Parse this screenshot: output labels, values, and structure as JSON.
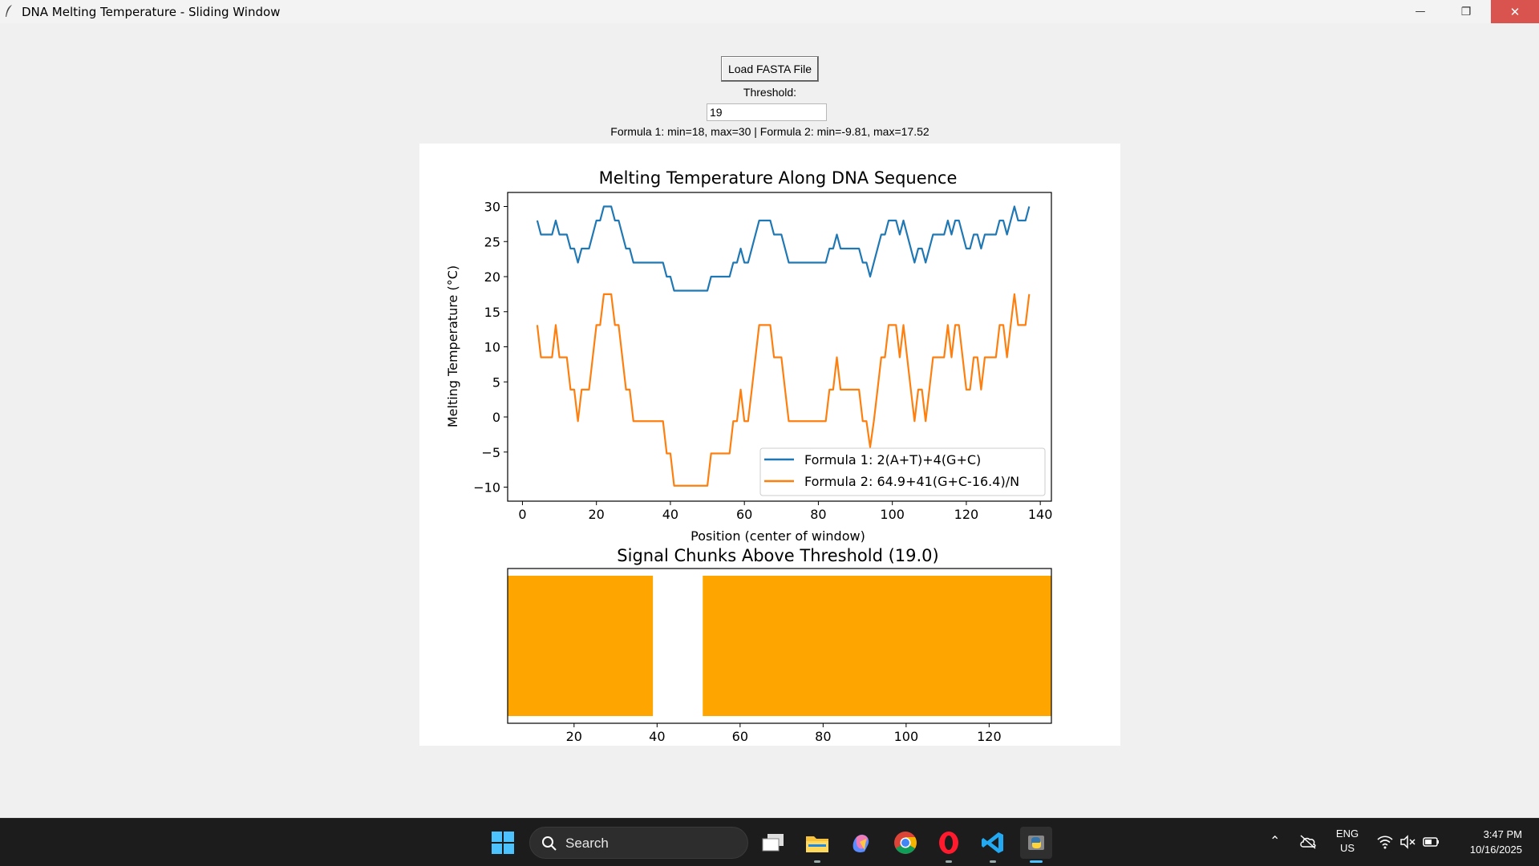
{
  "window": {
    "title": "DNA Melting Temperature - Sliding Window",
    "minimize_glyph": "—",
    "maximize_glyph": "❐",
    "close_glyph": "✕"
  },
  "controls": {
    "load_button": "Load FASTA File",
    "threshold_label": "Threshold:",
    "threshold_value": "19",
    "info_text": "Formula 1: min=18, max=30 | Formula 2: min=-9.81, max=17.52"
  },
  "chart_data": [
    {
      "type": "line",
      "title": "Melting Temperature Along DNA Sequence",
      "xlabel": "Position (center of window)",
      "ylabel": "Melting Temperature (°C)",
      "xlim": [
        -4,
        143
      ],
      "ylim": [
        -12,
        32
      ],
      "xticks": [
        "0",
        "20",
        "40",
        "60",
        "80",
        "100",
        "120",
        "140"
      ],
      "yticks": [
        "30",
        "25",
        "20",
        "15",
        "10",
        "5",
        "0",
        "−5",
        "−10"
      ],
      "legend_position": "lower-right",
      "grid": false,
      "series": [
        {
          "name": "Formula 1: 2(A+T)+4(G+C)",
          "color": "#1f77b4",
          "points": [
            [
              4,
              28
            ],
            [
              5,
              26
            ],
            [
              6,
              26
            ],
            [
              7,
              26
            ],
            [
              8,
              26
            ],
            [
              9,
              28
            ],
            [
              10,
              26
            ],
            [
              11,
              26
            ],
            [
              12,
              26
            ],
            [
              13,
              24
            ],
            [
              14,
              24
            ],
            [
              15,
              22
            ],
            [
              16,
              24
            ],
            [
              17,
              24
            ],
            [
              18,
              24
            ],
            [
              19,
              26
            ],
            [
              20,
              28
            ],
            [
              21,
              28
            ],
            [
              22,
              30
            ],
            [
              23,
              30
            ],
            [
              24,
              30
            ],
            [
              25,
              28
            ],
            [
              26,
              28
            ],
            [
              27,
              26
            ],
            [
              28,
              24
            ],
            [
              29,
              24
            ],
            [
              30,
              22
            ],
            [
              31,
              22
            ],
            [
              32,
              22
            ],
            [
              33,
              22
            ],
            [
              34,
              22
            ],
            [
              35,
              22
            ],
            [
              36,
              22
            ],
            [
              37,
              22
            ],
            [
              38,
              22
            ],
            [
              39,
              20
            ],
            [
              40,
              20
            ],
            [
              41,
              18
            ],
            [
              42,
              18
            ],
            [
              43,
              18
            ],
            [
              44,
              18
            ],
            [
              45,
              18
            ],
            [
              46,
              18
            ],
            [
              47,
              18
            ],
            [
              48,
              18
            ],
            [
              49,
              18
            ],
            [
              50,
              18
            ],
            [
              51,
              20
            ],
            [
              52,
              20
            ],
            [
              53,
              20
            ],
            [
              54,
              20
            ],
            [
              55,
              20
            ],
            [
              56,
              20
            ],
            [
              57,
              22
            ],
            [
              58,
              22
            ],
            [
              59,
              24
            ],
            [
              60,
              22
            ],
            [
              61,
              22
            ],
            [
              62,
              24
            ],
            [
              63,
              26
            ],
            [
              64,
              28
            ],
            [
              65,
              28
            ],
            [
              66,
              28
            ],
            [
              67,
              28
            ],
            [
              68,
              26
            ],
            [
              69,
              26
            ],
            [
              70,
              26
            ],
            [
              71,
              24
            ],
            [
              72,
              22
            ],
            [
              73,
              22
            ],
            [
              74,
              22
            ],
            [
              75,
              22
            ],
            [
              76,
              22
            ],
            [
              77,
              22
            ],
            [
              78,
              22
            ],
            [
              79,
              22
            ],
            [
              80,
              22
            ],
            [
              81,
              22
            ],
            [
              82,
              22
            ],
            [
              83,
              24
            ],
            [
              84,
              24
            ],
            [
              85,
              26
            ],
            [
              86,
              24
            ],
            [
              87,
              24
            ],
            [
              88,
              24
            ],
            [
              89,
              24
            ],
            [
              90,
              24
            ],
            [
              91,
              24
            ],
            [
              92,
              22
            ],
            [
              93,
              22
            ],
            [
              94,
              20
            ],
            [
              95,
              22
            ],
            [
              96,
              24
            ],
            [
              97,
              26
            ],
            [
              98,
              26
            ],
            [
              99,
              28
            ],
            [
              100,
              28
            ],
            [
              101,
              28
            ],
            [
              102,
              26
            ],
            [
              103,
              28
            ],
            [
              104,
              26
            ],
            [
              105,
              24
            ],
            [
              106,
              22
            ],
            [
              107,
              24
            ],
            [
              108,
              24
            ],
            [
              109,
              22
            ],
            [
              110,
              24
            ],
            [
              111,
              26
            ],
            [
              112,
              26
            ],
            [
              113,
              26
            ],
            [
              114,
              26
            ],
            [
              115,
              28
            ],
            [
              116,
              26
            ],
            [
              117,
              28
            ],
            [
              118,
              28
            ],
            [
              119,
              26
            ],
            [
              120,
              24
            ],
            [
              121,
              24
            ],
            [
              122,
              26
            ],
            [
              123,
              26
            ],
            [
              124,
              24
            ],
            [
              125,
              26
            ],
            [
              126,
              26
            ],
            [
              127,
              26
            ],
            [
              128,
              26
            ],
            [
              129,
              28
            ],
            [
              130,
              28
            ],
            [
              131,
              26
            ],
            [
              132,
              28
            ],
            [
              133,
              30
            ],
            [
              134,
              28
            ],
            [
              135,
              28
            ],
            [
              136,
              28
            ],
            [
              137,
              30
            ]
          ]
        },
        {
          "name": "Formula 2: 64.9+41(G+C-16.4)/N",
          "color": "#ff7f0e",
          "points": [
            [
              4,
              13.1
            ],
            [
              5,
              8.5
            ],
            [
              6,
              8.5
            ],
            [
              7,
              8.5
            ],
            [
              8,
              8.5
            ],
            [
              9,
              13.1
            ],
            [
              10,
              8.5
            ],
            [
              11,
              8.5
            ],
            [
              12,
              8.5
            ],
            [
              13,
              3.9
            ],
            [
              14,
              3.9
            ],
            [
              15,
              -0.6
            ],
            [
              16,
              3.9
            ],
            [
              17,
              3.9
            ],
            [
              18,
              3.9
            ],
            [
              19,
              8.5
            ],
            [
              20,
              13.1
            ],
            [
              21,
              13.1
            ],
            [
              22,
              17.5
            ],
            [
              23,
              17.5
            ],
            [
              24,
              17.5
            ],
            [
              25,
              13.1
            ],
            [
              26,
              13.1
            ],
            [
              27,
              8.5
            ],
            [
              28,
              3.9
            ],
            [
              29,
              3.9
            ],
            [
              30,
              -0.6
            ],
            [
              31,
              -0.6
            ],
            [
              32,
              -0.6
            ],
            [
              33,
              -0.6
            ],
            [
              34,
              -0.6
            ],
            [
              35,
              -0.6
            ],
            [
              36,
              -0.6
            ],
            [
              37,
              -0.6
            ],
            [
              38,
              -0.6
            ],
            [
              39,
              -5.2
            ],
            [
              40,
              -5.2
            ],
            [
              41,
              -9.8
            ],
            [
              42,
              -9.8
            ],
            [
              43,
              -9.8
            ],
            [
              44,
              -9.8
            ],
            [
              45,
              -9.8
            ],
            [
              46,
              -9.8
            ],
            [
              47,
              -9.8
            ],
            [
              48,
              -9.8
            ],
            [
              49,
              -9.8
            ],
            [
              50,
              -9.8
            ],
            [
              51,
              -5.2
            ],
            [
              52,
              -5.2
            ],
            [
              53,
              -5.2
            ],
            [
              54,
              -5.2
            ],
            [
              55,
              -5.2
            ],
            [
              56,
              -5.2
            ],
            [
              57,
              -0.6
            ],
            [
              58,
              -0.6
            ],
            [
              59,
              3.9
            ],
            [
              60,
              -0.6
            ],
            [
              61,
              -0.6
            ],
            [
              62,
              3.9
            ],
            [
              63,
              8.5
            ],
            [
              64,
              13.1
            ],
            [
              65,
              13.1
            ],
            [
              66,
              13.1
            ],
            [
              67,
              13.1
            ],
            [
              68,
              8.5
            ],
            [
              69,
              8.5
            ],
            [
              70,
              8.5
            ],
            [
              71,
              3.9
            ],
            [
              72,
              -0.6
            ],
            [
              73,
              -0.6
            ],
            [
              74,
              -0.6
            ],
            [
              75,
              -0.6
            ],
            [
              76,
              -0.6
            ],
            [
              77,
              -0.6
            ],
            [
              78,
              -0.6
            ],
            [
              79,
              -0.6
            ],
            [
              80,
              -0.6
            ],
            [
              81,
              -0.6
            ],
            [
              82,
              -0.6
            ],
            [
              83,
              3.9
            ],
            [
              84,
              3.9
            ],
            [
              85,
              8.5
            ],
            [
              86,
              3.9
            ],
            [
              87,
              3.9
            ],
            [
              88,
              3.9
            ],
            [
              89,
              3.9
            ],
            [
              90,
              3.9
            ],
            [
              91,
              3.9
            ],
            [
              92,
              -0.6
            ],
            [
              93,
              -0.6
            ],
            [
              94,
              -4.3
            ],
            [
              95,
              -0.6
            ],
            [
              96,
              3.9
            ],
            [
              97,
              8.5
            ],
            [
              98,
              8.5
            ],
            [
              99,
              13.1
            ],
            [
              100,
              13.1
            ],
            [
              101,
              13.1
            ],
            [
              102,
              8.5
            ],
            [
              103,
              13.1
            ],
            [
              104,
              8.5
            ],
            [
              105,
              3.9
            ],
            [
              106,
              -0.6
            ],
            [
              107,
              3.9
            ],
            [
              108,
              3.9
            ],
            [
              109,
              -0.6
            ],
            [
              110,
              3.9
            ],
            [
              111,
              8.5
            ],
            [
              112,
              8.5
            ],
            [
              113,
              8.5
            ],
            [
              114,
              8.5
            ],
            [
              115,
              13.1
            ],
            [
              116,
              8.5
            ],
            [
              117,
              13.1
            ],
            [
              118,
              13.1
            ],
            [
              119,
              8.5
            ],
            [
              120,
              3.9
            ],
            [
              121,
              3.9
            ],
            [
              122,
              8.5
            ],
            [
              123,
              8.5
            ],
            [
              124,
              3.9
            ],
            [
              125,
              8.5
            ],
            [
              126,
              8.5
            ],
            [
              127,
              8.5
            ],
            [
              128,
              8.5
            ],
            [
              129,
              13.1
            ],
            [
              130,
              13.1
            ],
            [
              131,
              8.5
            ],
            [
              132,
              13.1
            ],
            [
              133,
              17.5
            ],
            [
              134,
              13.1
            ],
            [
              135,
              13.1
            ],
            [
              136,
              13.1
            ],
            [
              137,
              17.5
            ]
          ]
        }
      ]
    },
    {
      "type": "bar",
      "title": "Signal Chunks Above Threshold (19.0)",
      "threshold": 19.0,
      "xlim": [
        4,
        135
      ],
      "xticks": [
        "20",
        "40",
        "60",
        "80",
        "100",
        "120"
      ],
      "color": "#ffa500",
      "chunks": [
        [
          4,
          39
        ],
        [
          51,
          135
        ]
      ]
    }
  ],
  "taskbar": {
    "search_label": "Search",
    "language_top": "ENG",
    "language_bottom": "US",
    "time": "3:47 PM",
    "date": "10/16/2025",
    "icons": [
      "windows-start-icon",
      "task-view-icon",
      "file-explorer-icon",
      "copilot-icon",
      "chrome-icon",
      "opera-icon",
      "vscode-icon",
      "python-icon"
    ]
  }
}
